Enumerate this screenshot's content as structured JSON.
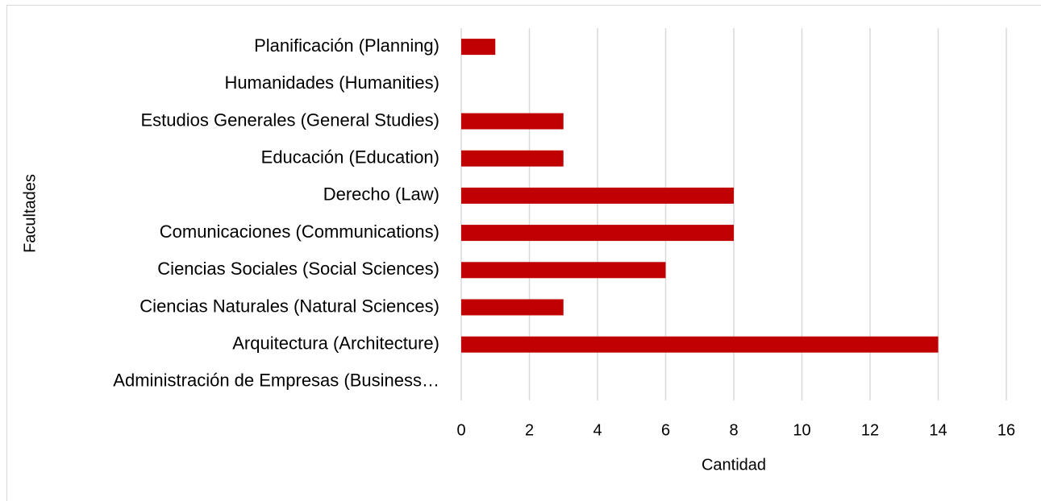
{
  "chart_data": {
    "type": "bar",
    "orientation": "horizontal",
    "categories": [
      "Planificación (Planning)",
      "Humanidades (Humanities)",
      "Estudios Generales (General Studies)",
      "Educación (Education)",
      "Derecho (Law)",
      "Comunicaciones (Communications)",
      "Ciencias Sociales (Social Sciences)",
      "Ciencias Naturales (Natural Sciences)",
      "Arquitectura (Architecture)",
      "Administración de Empresas (Business…"
    ],
    "values": [
      1,
      0,
      3,
      3,
      8,
      8,
      6,
      3,
      14,
      0
    ],
    "color": "#c00000",
    "xlim": [
      0,
      16
    ],
    "xticks": [
      0,
      2,
      4,
      6,
      8,
      10,
      12,
      14,
      16
    ],
    "xlabel": "Cantidad",
    "ylabel": "Facultades",
    "grid": true
  }
}
